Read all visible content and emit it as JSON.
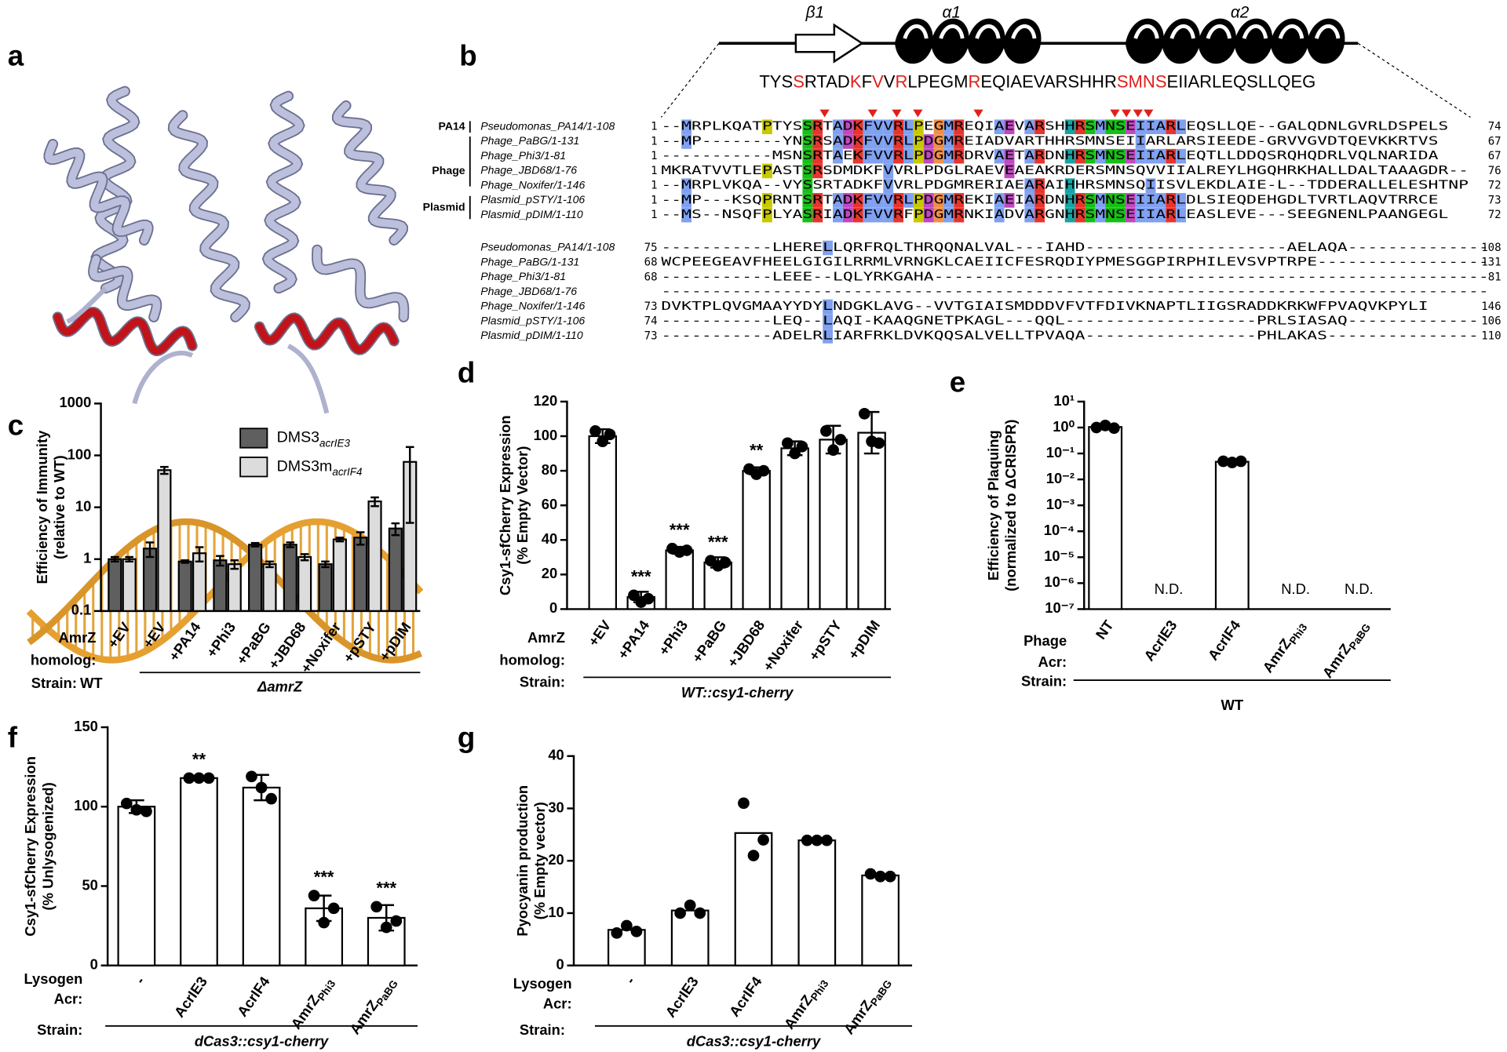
{
  "structure_panel": {
    "label": "a"
  },
  "alignment": {
    "label": "b",
    "secondary_structure": [
      "β1",
      "α1",
      "α2"
    ],
    "sequence_segments": [
      {
        "text": "TYS",
        "color": "#000000"
      },
      {
        "text": "S",
        "color": "#e0201b"
      },
      {
        "text": "RTAD",
        "color": "#000000"
      },
      {
        "text": "K",
        "color": "#e0201b"
      },
      {
        "text": "F",
        "color": "#000000"
      },
      {
        "text": "V",
        "color": "#e0201b"
      },
      {
        "text": "V",
        "color": "#000000"
      },
      {
        "text": "R",
        "color": "#e0201b"
      },
      {
        "text": "LPEGM",
        "color": "#000000"
      },
      {
        "text": "R",
        "color": "#e0201b"
      },
      {
        "text": "EQIAEVARSHHR",
        "color": "#000000"
      },
      {
        "text": "SMNS",
        "color": "#e0201b"
      },
      {
        "text": "EIIARLEQSLLQEG",
        "color": "#000000"
      }
    ],
    "groups": [
      "PA14",
      "Phage",
      "Plasmid"
    ],
    "blocks": [
      [
        {
          "name": "Pseudomonas_PA14/1-108",
          "start": 1,
          "sequence": "--MRPLKQATPTYSSRTADKFVVRLPEGMREQIAEVARSHHRSMNSEIIARLEQSLLQE--GALQDNLGVRLDSPELS",
          "end": 74
        },
        {
          "name": "Phage_PaBG/1-131",
          "start": 1,
          "sequence": "--MP--------YNSRSADKFVVRLPDGMREIADVARTHHRSMNSEIIARLARSIEEDE-GRVVGVDTQEVKKRTVS",
          "end": 67
        },
        {
          "name": "Phage_Phi3/1-81",
          "start": 1,
          "sequence": "-----------MSNSRTAEKFVVRLPDGMRDRVAETARDNHRSMNSEIIARLEQTLLDDQSRQHQDRLVQLNARIDA",
          "end": 67
        },
        {
          "name": "Phage_JBD68/1-76",
          "start": 1,
          "sequence": "MKRATVVTLEPASTSRSDMDKFVVRLPDGLRAEVEAEAKRDERSMNSQVVIIALREYLHGQHRKHALLDALTAAAGDR--",
          "end": 76
        },
        {
          "name": "Phage_Noxifer/1-146",
          "start": 1,
          "sequence": "--MRPLVKQA--VYSSRTADKFVVRLPDGMRERIAEARAIHHRSMNSQIISVLEKDLAIE-L--TDDERALLELESHTNP",
          "end": 72
        },
        {
          "name": "Plasmid_pSTY/1-106",
          "start": 1,
          "sequence": "--MP---KSQPRNTSRTADKFVVRLPDGMREKIAEIARDNHRSMNSEIIARLDLSIEQDEHGDLTVRTLAQVTRRCE",
          "end": 73
        },
        {
          "name": "Plasmid_pDIM/1-110",
          "start": 1,
          "sequence": "--MS--NSQFPLYASRIADKFVVRFPDGMRNKIADVARGNHRSMNSEIIARLEASLEVE---SEEGNENLPAANGEGL",
          "end": 72
        }
      ],
      [
        {
          "name": "Pseudomonas_PA14/1-108",
          "start": 75,
          "sequence": "-----------LHERELLQRFRQLTHRQQNALVAL---IAHD--------------------AELAQA--------------",
          "end": 108
        },
        {
          "name": "Phage_PaBG/1-131",
          "start": 68,
          "sequence": "WCPEEGEAVFHEELGIGILRRMLVRNGKLCAEIICFESRQDIYPMESGGPIRPHILEVSVPTRPE-----------------",
          "end": 131
        },
        {
          "name": "Phage_Phi3/1-81",
          "start": 68,
          "sequence": "-----------LEEE--LQLYRKGAHA-------------------------------------------------------",
          "end": 81
        },
        {
          "name": "Phage_JBD68/1-76",
          "start": null,
          "sequence": "----------------------------------------------------------------------------------",
          "end": null
        },
        {
          "name": "Phage_Noxifer/1-146",
          "start": 73,
          "sequence": "DVKTPLQVGMAAYYDYLNDGKLAVG--VVTGIAISMDDDVFVTFDIVKNAPTLIIGSRADDKRKWFPVAQVKPYLI",
          "end": 146
        },
        {
          "name": "Plasmid_pSTY/1-106",
          "start": 74,
          "sequence": "-----------LEQ--LAQI-KAAQGNETPKAGL---QQL-------------------PRLSIASAQ-------------",
          "end": 106
        },
        {
          "name": "Plasmid_pDIM/1-110",
          "start": 73,
          "sequence": "-----------ADELRLIARFRKLDVKQQSALVELLTPVAQA-----------------PHLAKAS---------------",
          "end": 110
        }
      ]
    ]
  },
  "chart_data": [
    {
      "type": "bar",
      "panel": "c",
      "ylabel": [
        "Efficiency of Immunity",
        "(relative to WT)"
      ],
      "log_scale": true,
      "ylim": [
        0.1,
        1000
      ],
      "yticks": [
        0.1,
        1,
        10,
        100,
        1000
      ],
      "categories": [
        "+EV",
        "+EV",
        "+PA14",
        "+Phi3",
        "+PaBG",
        "+JBD68",
        "+Noxifer",
        "+pSTY",
        "+pDIM"
      ],
      "series": [
        {
          "name": "DMS3",
          "subscript": "acrIE3",
          "color": "#5f5f5f",
          "values": [
            1.0,
            1.6,
            0.9,
            0.95,
            1.9,
            1.9,
            0.8,
            2.6,
            3.9
          ],
          "errors": [
            0.1,
            0.5,
            0.05,
            0.2,
            0.15,
            0.2,
            0.1,
            0.7,
            1.0
          ]
        },
        {
          "name": "DMS3m",
          "subscript": "acrIF4",
          "color": "#dcdcdc",
          "values": [
            1.0,
            52,
            1.3,
            0.8,
            0.8,
            1.1,
            2.4,
            13,
            75
          ],
          "errors": [
            0.1,
            8,
            0.4,
            0.15,
            0.1,
            0.15,
            0.2,
            2.5,
            70
          ]
        }
      ],
      "category_heading": [
        "AmrZ",
        "homolog:"
      ],
      "strain_heading": "Strain:",
      "strains": [
        "WT",
        "ΔamrZ"
      ]
    },
    {
      "type": "bar",
      "panel": "d",
      "ylabel": [
        "Csy1-sfCherry Expression",
        "(% Empty Vector)"
      ],
      "ylim": [
        0,
        120
      ],
      "yticks": [
        0,
        20,
        40,
        60,
        80,
        100,
        120
      ],
      "categories": [
        "+EV",
        "+PA14",
        "+Phi3",
        "+PaBG",
        "+JBD68",
        "+Noxifer",
        "+pSTY",
        "+pDIM"
      ],
      "color": "#ffffff",
      "values": [
        100,
        7,
        34,
        27,
        80,
        93,
        98,
        102
      ],
      "errors": [
        4,
        3,
        2,
        3,
        2,
        4,
        8,
        12
      ],
      "points": [
        [
          103,
          97,
          101
        ],
        [
          8,
          4,
          6
        ],
        [
          35,
          33,
          34
        ],
        [
          28,
          25,
          27
        ],
        [
          81,
          78,
          80
        ],
        [
          96,
          90,
          94
        ],
        [
          103,
          92,
          98
        ],
        [
          113,
          97,
          96
        ]
      ],
      "significance": [
        null,
        "***",
        "***",
        "***",
        "**",
        null,
        null,
        null
      ],
      "category_heading": [
        "AmrZ",
        "homolog:"
      ],
      "strain_heading": "Strain:",
      "strains": [
        "WT::csy1-cherry"
      ]
    },
    {
      "type": "bar",
      "panel": "e",
      "ylabel": [
        "Efficiency of Plaquing",
        "(normalized to ΔCRISPR)"
      ],
      "log_scale": true,
      "ylim": [
        1e-07,
        10
      ],
      "yticks": [
        {
          "value": 10,
          "label": "10¹"
        },
        {
          "value": 1,
          "label": "10⁰"
        },
        {
          "value": 0.1,
          "label": "10⁻¹"
        },
        {
          "value": 0.01,
          "label": "10⁻²"
        },
        {
          "value": 0.001,
          "label": "10⁻³"
        },
        {
          "value": 0.0001,
          "label": "10⁻⁴"
        },
        {
          "value": 1e-05,
          "label": "10⁻⁵"
        },
        {
          "value": 1e-06,
          "label": "10⁻⁶"
        },
        {
          "value": 1e-07,
          "label": "10⁻⁷"
        }
      ],
      "categories": [
        "NT",
        "AcrIE3",
        "AcrIF4",
        "AmrZ",
        "AmrZ"
      ],
      "category_subscripts": [
        null,
        null,
        null,
        "Phi3",
        "PaBG"
      ],
      "color": "#ffffff",
      "values": [
        1.05,
        null,
        0.048,
        null,
        null
      ],
      "value_labels": [
        null,
        "N.D.",
        null,
        "N.D.",
        "N.D."
      ],
      "errors": [
        0.15,
        null,
        0.006,
        null,
        null
      ],
      "points": [
        [
          1.0,
          1.2,
          0.95
        ],
        null,
        [
          0.05,
          0.045,
          0.05
        ],
        null,
        null
      ],
      "category_heading": [
        "Phage",
        "Acr:"
      ],
      "strain_heading": "Strain:",
      "strains": [
        "WT"
      ]
    },
    {
      "type": "bar",
      "panel": "f",
      "ylabel": [
        "Csy1-sfCherry Expression",
        "(% Unlysogenized)"
      ],
      "ylim": [
        0,
        150
      ],
      "yticks": [
        0,
        50,
        100,
        150
      ],
      "categories": [
        "-",
        "AcrIE3",
        "AcrIF4",
        "AmrZ",
        "AmrZ"
      ],
      "category_subscripts": [
        null,
        null,
        null,
        "Phi3",
        "PaBG"
      ],
      "color": "#ffffff",
      "values": [
        100,
        118,
        112,
        36,
        30
      ],
      "errors": [
        4,
        1,
        8,
        8,
        8
      ],
      "points": [
        [
          102,
          98,
          97
        ],
        [
          118,
          118,
          118
        ],
        [
          119,
          112,
          105
        ],
        [
          44,
          27,
          36
        ],
        [
          37,
          24,
          28
        ]
      ],
      "significance": [
        null,
        "**",
        null,
        "***",
        "***"
      ],
      "category_heading": [
        "Lysogen",
        "Acr:"
      ],
      "strain_heading": "Strain:",
      "strains": [
        "dCas3::csy1-cherry"
      ]
    },
    {
      "type": "bar",
      "panel": "g",
      "ylabel": [
        "Pyocyanin production",
        "(% Empty vector)"
      ],
      "ylim": [
        0,
        40
      ],
      "yticks": [
        0,
        10,
        20,
        30,
        40
      ],
      "categories": [
        "-",
        "AcrIE3",
        "AcrIF4",
        "AmrZ",
        "AmrZ"
      ],
      "category_subscripts": [
        null,
        null,
        null,
        "Phi3",
        "PaBG"
      ],
      "color": "#ffffff",
      "values": [
        6.8,
        10.5,
        25.3,
        23.9,
        17.2
      ],
      "points": [
        [
          6.2,
          7.6,
          6.5
        ],
        [
          10,
          11.5,
          10
        ],
        [
          31,
          21,
          24
        ],
        [
          23.9,
          23.9,
          23.9
        ],
        [
          17.5,
          17,
          17
        ]
      ],
      "category_heading": [
        "Lysogen",
        "Acr:"
      ],
      "strain_heading": "Strain:",
      "strains": [
        "dCas3::csy1-cherry"
      ]
    }
  ]
}
